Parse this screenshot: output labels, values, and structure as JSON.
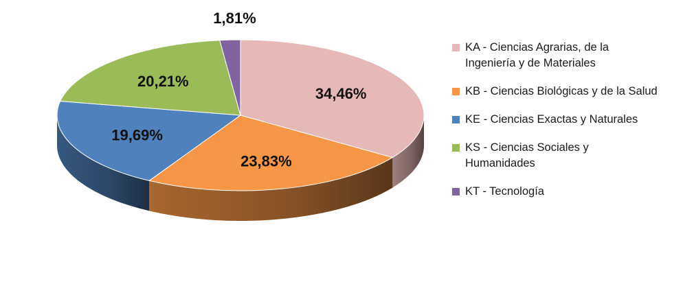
{
  "chart_data": {
    "type": "pie",
    "title": "",
    "categories": [
      "KA - Ciencias Agrarias, de la Ingeniería y de Materiales",
      "KB - Ciencias Biológicas y de la Salud",
      "KE - Ciencias Exactas y Naturales",
      "KS - Ciencias Sociales y Humanidades",
      "KT - Tecnología"
    ],
    "values": [
      34.46,
      23.83,
      19.69,
      20.21,
      1.81
    ],
    "data_labels": [
      "34,46%",
      "23,83%",
      "19,69%",
      "20,21%",
      "1,81%"
    ],
    "colors": [
      "#e6b9b8",
      "#f79646",
      "#4f81bd",
      "#9bbb59",
      "#8064a2"
    ],
    "legend_position": "right",
    "style": "3d"
  }
}
